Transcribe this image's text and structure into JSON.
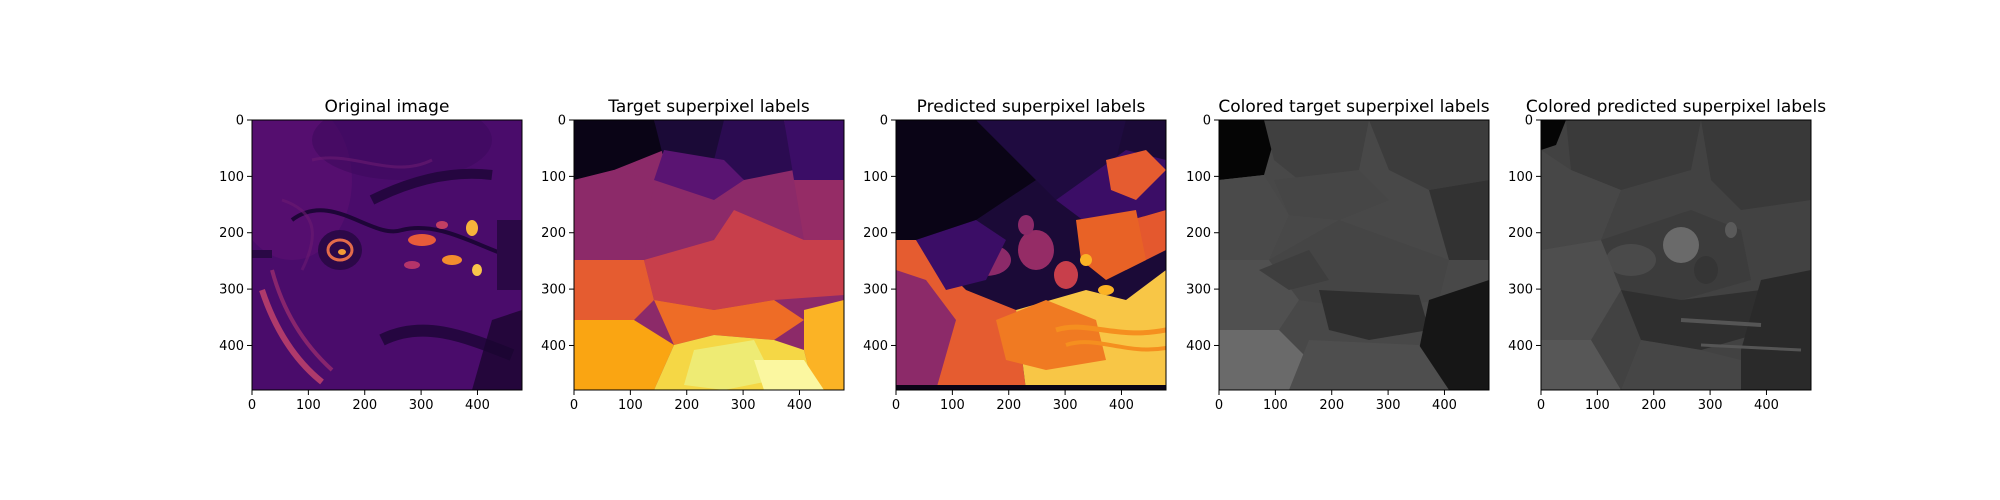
{
  "chart_data": [
    {
      "type": "heatmap",
      "title": "Original image",
      "colormap": "inferno",
      "xlim": [
        0,
        479
      ],
      "ylim": [
        479,
        0
      ],
      "xticks": [
        0,
        100,
        200,
        300,
        400
      ],
      "yticks": [
        0,
        100,
        200,
        300,
        400
      ],
      "grid": false
    },
    {
      "type": "heatmap",
      "title": "Target superpixel labels",
      "colormap": "inferno",
      "xlim": [
        0,
        479
      ],
      "ylim": [
        479,
        0
      ],
      "xticks": [
        0,
        100,
        200,
        300,
        400
      ],
      "yticks": [
        0,
        100,
        200,
        300,
        400
      ],
      "grid": false
    },
    {
      "type": "heatmap",
      "title": "Predicted superpixel labels",
      "colormap": "inferno",
      "xlim": [
        0,
        479
      ],
      "ylim": [
        479,
        0
      ],
      "xticks": [
        0,
        100,
        200,
        300,
        400
      ],
      "yticks": [
        0,
        100,
        200,
        300,
        400
      ],
      "grid": false
    },
    {
      "type": "heatmap",
      "title": "Colored target superpixel labels",
      "colormap": "gray",
      "xlim": [
        0,
        479
      ],
      "ylim": [
        479,
        0
      ],
      "xticks": [
        0,
        100,
        200,
        300,
        400
      ],
      "yticks": [
        0,
        100,
        200,
        300,
        400
      ],
      "grid": false
    },
    {
      "type": "heatmap",
      "title": "Colored predicted superpixel labels",
      "colormap": "gray",
      "xlim": [
        0,
        479
      ],
      "ylim": [
        479,
        0
      ],
      "xticks": [
        0,
        100,
        200,
        300,
        400
      ],
      "yticks": [
        0,
        100,
        200,
        300,
        400
      ],
      "grid": false
    }
  ]
}
